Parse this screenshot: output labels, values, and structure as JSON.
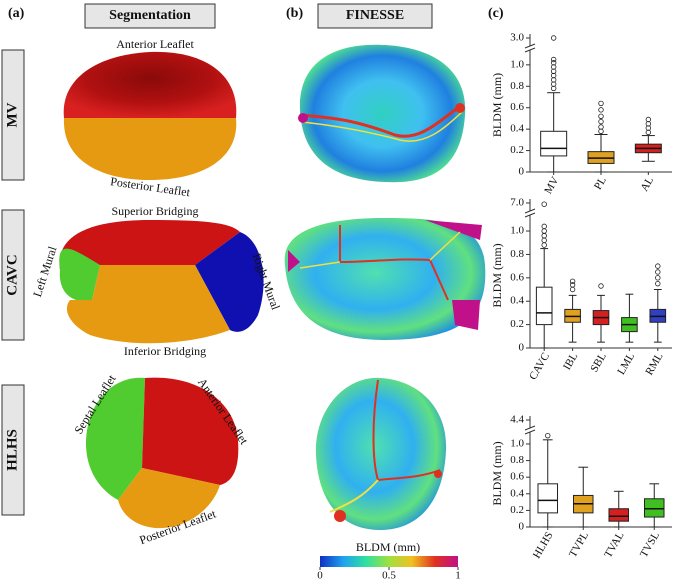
{
  "panels": [
    {
      "label": "(a)",
      "title": "Segmentation"
    },
    {
      "label": "(b)",
      "title": "FINESSE"
    },
    {
      "label": "(c)"
    }
  ],
  "rows": [
    "MV",
    "CAVC",
    "HLHS"
  ],
  "segment_labels": {
    "mv": [
      "Anterior Leaflet",
      "Posterior Leaflet"
    ],
    "cavc": [
      "Superior Bridging",
      "Inferior Bridging",
      "Left Mural",
      "Right Mural"
    ],
    "hlhs": [
      "Septal Leaflet",
      "Anterior Leaflet",
      "Posterior Leaflet"
    ]
  },
  "colorbar": {
    "label": "BLDM (mm)",
    "ticks": [
      0,
      0.5,
      1
    ],
    "colors": [
      "#1030c0",
      "#20a0f0",
      "#30e0a0",
      "#a0e040",
      "#f0c020",
      "#e03020",
      "#c0108a"
    ]
  },
  "chart_data": [
    {
      "type": "box",
      "ylabel": "BLDM (mm)",
      "ylim": [
        0,
        3.0
      ],
      "broken_axis": true,
      "yticks": [
        0,
        0.2,
        0.4,
        0.6,
        0.8,
        {
          "value": 1,
          "label": "1.0"
        },
        {
          "value": 3,
          "label": "3.0"
        }
      ],
      "categories": [
        "MV",
        "PL",
        "AL"
      ],
      "boxes": [
        {
          "color": "#ffffff",
          "low": 0.0,
          "q1": 0.15,
          "median": 0.22,
          "q3": 0.38,
          "high": 0.74,
          "outliers": [
            0.78,
            0.82,
            0.86,
            0.9,
            0.94,
            0.98,
            1.02,
            1.05,
            3.0
          ]
        },
        {
          "color": "#e0a020",
          "low": 0.0,
          "q1": 0.08,
          "median": 0.13,
          "q3": 0.19,
          "high": 0.35,
          "outliers": [
            0.38,
            0.42,
            0.47,
            0.52,
            0.58,
            0.64
          ]
        },
        {
          "color": "#d42020",
          "low": 0.1,
          "q1": 0.18,
          "median": 0.22,
          "q3": 0.26,
          "high": 0.34,
          "outliers": [
            0.37,
            0.41,
            0.45,
            0.49
          ]
        }
      ]
    },
    {
      "type": "box",
      "ylabel": "BLDM (mm)",
      "ylim": [
        0,
        7.0
      ],
      "broken_axis": true,
      "yticks": [
        0,
        0.2,
        0.4,
        0.6,
        0.8,
        {
          "value": 1,
          "label": "1.0"
        },
        {
          "value": 7,
          "label": "7.0"
        }
      ],
      "categories": [
        "CAVC",
        "IBL",
        "SBL",
        "LML",
        "RML"
      ],
      "boxes": [
        {
          "color": "#ffffff",
          "low": 0.0,
          "q1": 0.2,
          "median": 0.3,
          "q3": 0.52,
          "high": 0.85,
          "outliers": [
            0.88,
            0.92,
            0.96,
            1.0,
            1.04,
            6.5
          ]
        },
        {
          "color": "#e0a020",
          "low": 0.05,
          "q1": 0.22,
          "median": 0.27,
          "q3": 0.33,
          "high": 0.45,
          "outliers": [
            0.5,
            0.54,
            0.57
          ]
        },
        {
          "color": "#d42020",
          "low": 0.05,
          "q1": 0.2,
          "median": 0.26,
          "q3": 0.32,
          "high": 0.45,
          "outliers": [
            0.53
          ]
        },
        {
          "color": "#40c020",
          "low": 0.05,
          "q1": 0.14,
          "median": 0.2,
          "q3": 0.26,
          "high": 0.46,
          "outliers": []
        },
        {
          "color": "#3040c0",
          "low": 0.05,
          "q1": 0.22,
          "median": 0.27,
          "q3": 0.33,
          "high": 0.5,
          "outliers": [
            0.55,
            0.6,
            0.65,
            0.7
          ]
        }
      ]
    },
    {
      "type": "box",
      "ylabel": "BLDM (mm)",
      "ylim": [
        0,
        4.4
      ],
      "broken_axis": true,
      "yticks": [
        0,
        0.2,
        0.4,
        0.6,
        0.8,
        {
          "value": 1,
          "label": "1.0"
        },
        {
          "value": 4.4,
          "label": "4.4"
        }
      ],
      "categories": [
        "HLHS",
        "TVPL",
        "TVAL",
        "TVSL"
      ],
      "boxes": [
        {
          "color": "#ffffff",
          "low": 0.0,
          "q1": 0.17,
          "median": 0.32,
          "q3": 0.52,
          "high": 1.05,
          "outliers": [
            1.1
          ]
        },
        {
          "color": "#e0a020",
          "low": 0.0,
          "q1": 0.17,
          "median": 0.28,
          "q3": 0.38,
          "high": 0.72,
          "outliers": []
        },
        {
          "color": "#d42020",
          "low": 0.0,
          "q1": 0.07,
          "median": 0.13,
          "q3": 0.22,
          "high": 0.43,
          "outliers": []
        },
        {
          "color": "#40c020",
          "low": 0.0,
          "q1": 0.12,
          "median": 0.22,
          "q3": 0.34,
          "high": 0.52,
          "outliers": []
        }
      ]
    }
  ]
}
